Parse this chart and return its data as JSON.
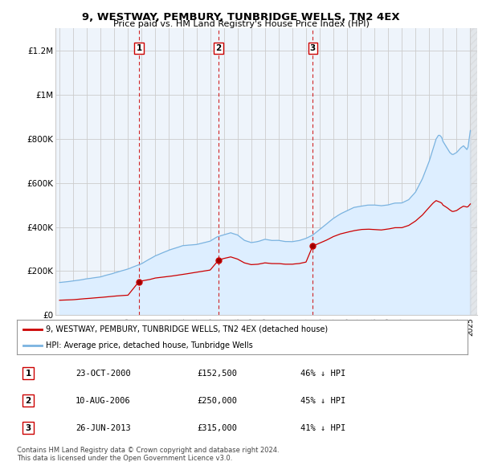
{
  "title": "9, WESTWAY, PEMBURY, TUNBRIDGE WELLS, TN2 4EX",
  "subtitle": "Price paid vs. HM Land Registry's House Price Index (HPI)",
  "legend_red": "9, WESTWAY, PEMBURY, TUNBRIDGE WELLS, TN2 4EX (detached house)",
  "legend_blue": "HPI: Average price, detached house, Tunbridge Wells",
  "transactions": [
    {
      "num": 1,
      "date": "23-OCT-2000",
      "price": 152500,
      "pct": "46%",
      "dir": "↓",
      "x_year": 2000.81
    },
    {
      "num": 2,
      "date": "10-AUG-2006",
      "price": 250000,
      "pct": "45%",
      "dir": "↓",
      "x_year": 2006.61
    },
    {
      "num": 3,
      "date": "26-JUN-2013",
      "price": 315000,
      "pct": "41%",
      "dir": "↓",
      "x_year": 2013.49
    }
  ],
  "footnote1": "Contains HM Land Registry data © Crown copyright and database right 2024.",
  "footnote2": "This data is licensed under the Open Government Licence v3.0.",
  "ylim": [
    0,
    1300000
  ],
  "xlim_start": 1994.7,
  "xlim_end": 2025.5,
  "hpi_color": "#7ab3e0",
  "hpi_fill_color": "#ddeeff",
  "price_color": "#cc0000",
  "vline_color": "#cc0000",
  "grid_color": "#cccccc",
  "bg_color": "#ffffff",
  "chart_bg": "#eef4fb"
}
